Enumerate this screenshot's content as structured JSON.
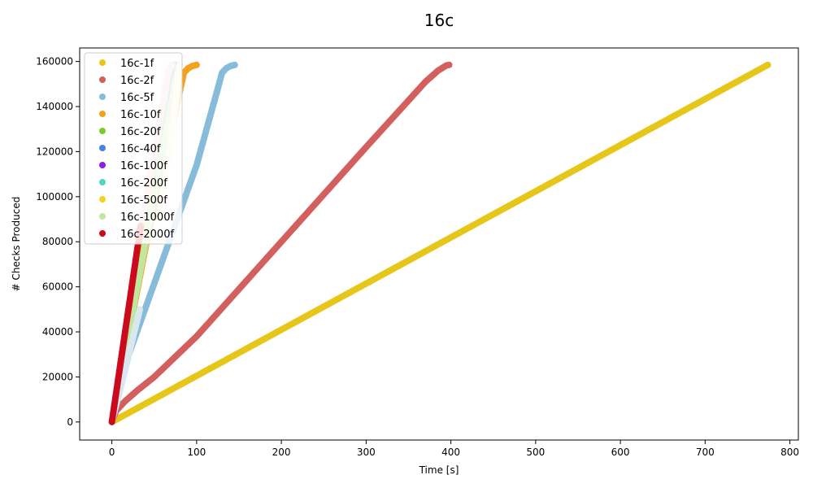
{
  "chart_data": {
    "type": "scatter",
    "title": "16c",
    "xlabel": "Time [s]",
    "ylabel": "# Checks Produced",
    "xlim": [
      -38,
      810
    ],
    "ylim": [
      -8000,
      166000
    ],
    "xticks": [
      0,
      100,
      200,
      300,
      400,
      500,
      600,
      700,
      800
    ],
    "yticks": [
      0,
      20000,
      40000,
      60000,
      80000,
      100000,
      120000,
      140000,
      160000
    ],
    "legend_position": "top-left",
    "grid": false,
    "series": [
      {
        "name": "16c-1f",
        "color": "#e6c619",
        "x": [
          0,
          774
        ],
        "y": [
          0,
          158500
        ]
      },
      {
        "name": "16c-2f",
        "color": "#d35f5f",
        "x": [
          0,
          5,
          15,
          30,
          50,
          100,
          200,
          300,
          370,
          385,
          395,
          398
        ],
        "y": [
          0,
          5000,
          9000,
          14000,
          20000,
          38000,
          80000,
          122000,
          151000,
          156000,
          158300,
          158500
        ]
      },
      {
        "name": "16c-5f",
        "color": "#86bcd9",
        "x": [
          0,
          20,
          60,
          100,
          125,
          130,
          135,
          140,
          145
        ],
        "y": [
          0,
          30000,
          72000,
          114000,
          148000,
          155000,
          157000,
          158000,
          158500
        ]
      },
      {
        "name": "16c-10f",
        "color": "#f2a21e",
        "x": [
          0,
          40,
          85,
          90,
          95,
          100
        ],
        "y": [
          0,
          78000,
          155000,
          157000,
          158000,
          158500
        ]
      },
      {
        "name": "16c-20f",
        "color": "#7ccc2c",
        "x": [
          0,
          75,
          80
        ],
        "y": [
          0,
          153000,
          158500
        ]
      },
      {
        "name": "16c-40f",
        "color": "#4a82e0",
        "x": [
          0,
          72,
          76
        ],
        "y": [
          0,
          155000,
          158500
        ]
      },
      {
        "name": "16c-100f",
        "color": "#8a1ef0",
        "x": [
          0,
          70,
          74
        ],
        "y": [
          0,
          155000,
          158500
        ]
      },
      {
        "name": "16c-200f",
        "color": "#4fd6c2",
        "x": [
          0,
          68,
          72
        ],
        "y": [
          0,
          155000,
          158500
        ]
      },
      {
        "name": "16c-500f",
        "color": "#f2d51a",
        "x": [
          0,
          66,
          70
        ],
        "y": [
          0,
          155000,
          158500
        ]
      },
      {
        "name": "16c-1000f",
        "color": "#bfe89e",
        "x": [
          0,
          20,
          60,
          75,
          80
        ],
        "y": [
          0,
          40000,
          120000,
          152000,
          158500
        ]
      },
      {
        "name": "16c-2000f",
        "color": "#cc0a1e",
        "x": [
          0,
          34
        ],
        "y": [
          0,
          87000
        ]
      }
    ],
    "overlays": [
      {
        "name": "16c-5f-light",
        "color": "#d8e8ee",
        "x": [
          0,
          20,
          33
        ],
        "y": [
          0,
          30000,
          50000
        ]
      },
      {
        "name": "16c-1000f-pale",
        "color": "#fdf2c9",
        "x": [
          55,
          70,
          80
        ],
        "y": [
          90000,
          125000,
          158500
        ]
      },
      {
        "name": "16c-2f-pink",
        "color": "#f3c6c9",
        "x": [
          35,
          50,
          62,
          66,
          70
        ],
        "y": [
          88000,
          120000,
          145000,
          155000,
          158500
        ]
      }
    ]
  }
}
